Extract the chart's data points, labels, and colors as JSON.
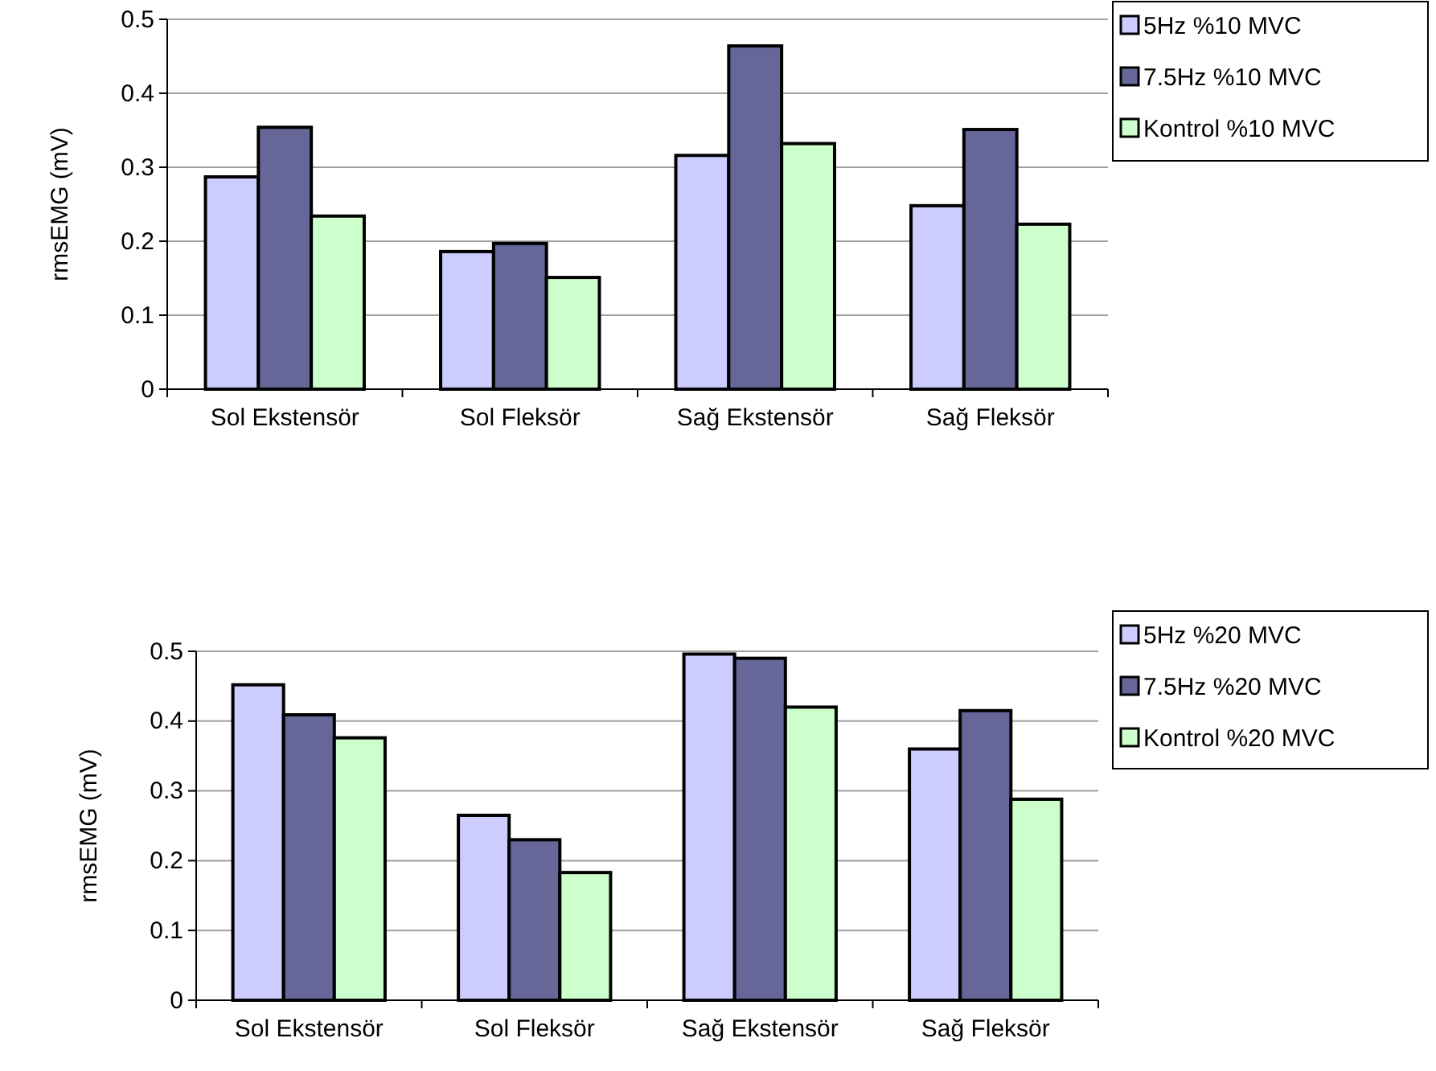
{
  "chart_data": [
    {
      "type": "bar",
      "ylabel": "rmsEMG (mV)",
      "categories": [
        "Sol Ekstensör",
        "Sol Fleksör",
        "Sağ Ekstensör",
        "Sağ Fleksör"
      ],
      "ylim": [
        0,
        0.5
      ],
      "yticks": [
        0,
        0.1,
        0.2,
        0.3,
        0.4,
        0.5
      ],
      "grid": "y",
      "legend": "top right",
      "series": [
        {
          "name": "5Hz %10 MVC",
          "color": "#ccccff",
          "values": [
            0.287,
            0.186,
            0.316,
            0.248
          ]
        },
        {
          "name": "7.5Hz %10 MVC",
          "color": "#666699",
          "values": [
            0.354,
            0.197,
            0.464,
            0.351
          ]
        },
        {
          "name": "Kontrol %10 MVC",
          "color": "#ccffcc",
          "values": [
            0.234,
            0.151,
            0.332,
            0.223
          ]
        }
      ]
    },
    {
      "type": "bar",
      "ylabel": "rmsEMG (mV)",
      "categories": [
        "Sol Ekstensör",
        "Sol Fleksör",
        "Sağ Ekstensör",
        "Sağ Fleksör"
      ],
      "ylim": [
        0,
        0.5
      ],
      "yticks": [
        0,
        0.1,
        0.2,
        0.3,
        0.4,
        0.5
      ],
      "grid": "y",
      "legend": "top right",
      "series": [
        {
          "name": "5Hz %20 MVC",
          "color": "#ccccff",
          "values": [
            0.452,
            0.265,
            0.496,
            0.36
          ]
        },
        {
          "name": "7.5Hz %20 MVC",
          "color": "#666699",
          "values": [
            0.409,
            0.23,
            0.49,
            0.415
          ]
        },
        {
          "name": "Kontrol %20 MVC",
          "color": "#ccffcc",
          "values": [
            0.376,
            0.183,
            0.42,
            0.288
          ]
        }
      ]
    }
  ]
}
